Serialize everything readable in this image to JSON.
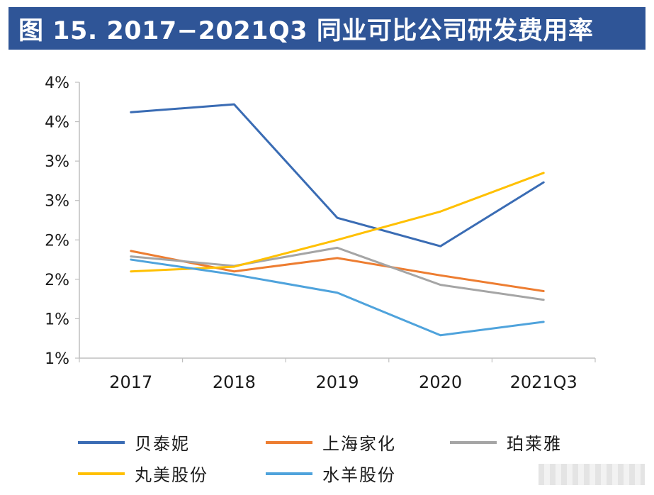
{
  "title": "图 15. 2017−2021Q3 同业可比公司研发费用率",
  "chart_data": {
    "type": "line",
    "categories": [
      "2017",
      "2018",
      "2019",
      "2020",
      "2021Q3"
    ],
    "y_tick_labels": [
      "1%",
      "1%",
      "2%",
      "2%",
      "3%",
      "3%",
      "4%",
      "4%"
    ],
    "ylim": [
      1.0,
      4.5
    ],
    "grid": false,
    "legend_position": "bottom",
    "series": [
      {
        "name": "贝泰妮",
        "color": "#3a6cb4",
        "values": [
          4.12,
          4.22,
          2.78,
          2.42,
          3.23
        ]
      },
      {
        "name": "上海家化",
        "color": "#ed7d31",
        "values": [
          2.36,
          2.1,
          2.27,
          2.05,
          1.85
        ]
      },
      {
        "name": "珀莱雅",
        "color": "#a5a5a5",
        "values": [
          2.29,
          2.17,
          2.4,
          1.93,
          1.74
        ]
      },
      {
        "name": "丸美股份",
        "color": "#ffc000",
        "values": [
          2.1,
          2.16,
          2.5,
          2.86,
          3.35
        ]
      },
      {
        "name": "水羊股份",
        "color": "#4fa3dc",
        "values": [
          2.25,
          2.06,
          1.83,
          1.29,
          1.46
        ]
      }
    ]
  }
}
